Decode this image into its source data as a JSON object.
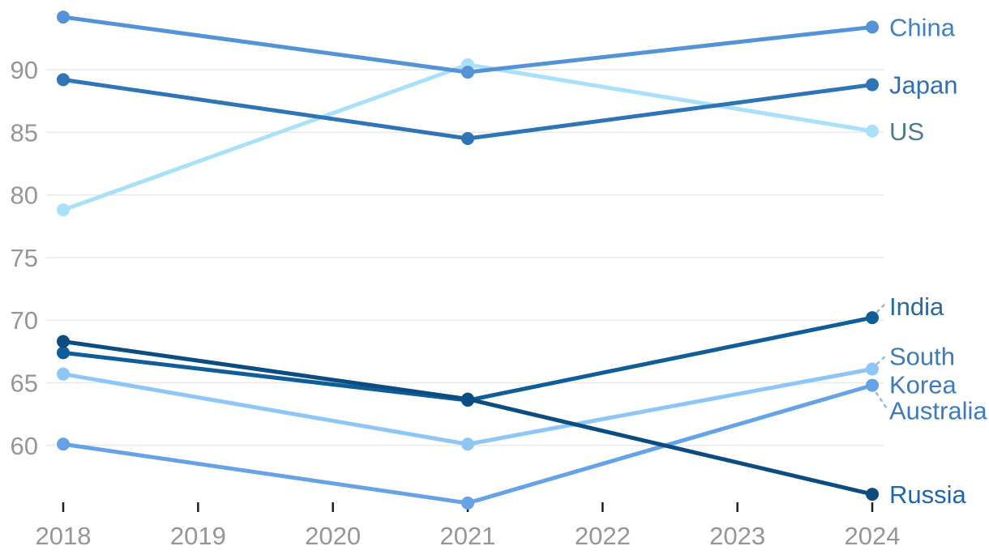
{
  "chart_data": {
    "type": "line",
    "title": "",
    "xlabel": "",
    "ylabel": "",
    "x": [
      2018,
      2021,
      2024
    ],
    "x_ticks": [
      "2018",
      "2019",
      "2020",
      "2021",
      "2022",
      "2023",
      "2024"
    ],
    "x_tick_years": [
      2018,
      2019,
      2020,
      2021,
      2022,
      2023,
      2024
    ],
    "y_gridlines": [
      90,
      85,
      80,
      75,
      70,
      65,
      60
    ],
    "ylim": [
      54.8,
      95.6
    ],
    "xlim": [
      2018,
      2024
    ],
    "grid": true,
    "legend_position": "direct-labels-right",
    "series": [
      {
        "name": "China",
        "values": [
          94.2,
          89.8,
          93.4
        ],
        "color": "#5593d8",
        "label_color": "#3f82c4",
        "label_lines": [
          "China"
        ],
        "leader": false
      },
      {
        "name": "Japan",
        "values": [
          89.2,
          84.5,
          88.8
        ],
        "color": "#2e75b8",
        "label_color": "#336fb2",
        "label_lines": [
          "Japan"
        ],
        "leader": false
      },
      {
        "name": "US",
        "values": [
          78.8,
          90.4,
          85.1
        ],
        "color": "#a9e2f8",
        "label_color": "#4a7d8d",
        "label_lines": [
          "US"
        ],
        "leader": false
      },
      {
        "name": "India",
        "values": [
          67.4,
          63.6,
          70.2
        ],
        "color": "#0f5e99",
        "label_color": "#2a689f",
        "label_lines": [
          "India"
        ],
        "leader": true
      },
      {
        "name": "South Korea",
        "values": [
          65.7,
          60.1,
          66.1
        ],
        "color": "#8ec7f5",
        "label_color": "#3c7cba",
        "label_lines": [
          "South",
          "Korea"
        ],
        "leader": true
      },
      {
        "name": "Australia",
        "values": [
          60.1,
          55.4,
          64.8
        ],
        "color": "#66a2e7",
        "label_color": "#3c7cba",
        "label_lines": [
          "Australia"
        ],
        "leader": true
      },
      {
        "name": "Russia",
        "values": [
          68.3,
          63.7,
          56.1
        ],
        "color": "#0b4d80",
        "label_color": "#1f66ad",
        "label_lines": [
          "Russia"
        ],
        "leader": false
      }
    ]
  },
  "axis": {
    "tick_color": "#1f1f1f",
    "tick_label_color": "#969696",
    "grid_color": "#e9e9e9",
    "leader_color": "#8fbde4"
  }
}
